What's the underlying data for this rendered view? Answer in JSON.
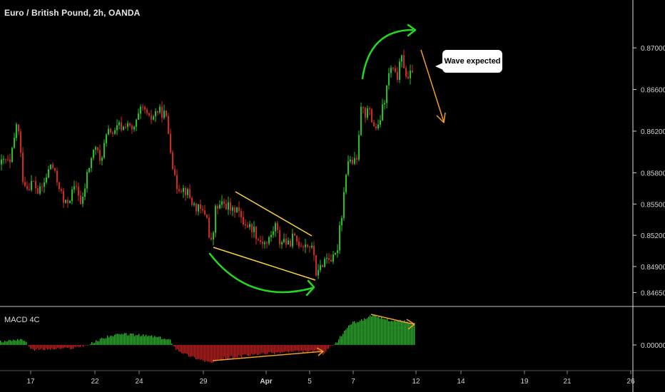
{
  "header": {
    "title": "Euro / British Pound, 2h, OANDA"
  },
  "indicator": {
    "label": "MACD 4C"
  },
  "annotation": {
    "text": "Wave expected"
  },
  "colors": {
    "background": "#000000",
    "up_candle": "#21c321",
    "down_candle": "#d0281e",
    "macd_positive": "#2bb52b",
    "macd_negative": "#c41e1e",
    "trend_line": "#f7d23a",
    "divergence_arrow": "#f39c2a",
    "curve_arrow": "#22d822",
    "forecast_arrow": "#f39c2a",
    "axis_text": "#d0d0d0",
    "separator": "#bfbfbf"
  },
  "chart_data": [
    {
      "type": "candlestick",
      "title": "Euro / British Pound, 2h, OANDA",
      "xlabel": "",
      "ylabel": "",
      "x_ticks": [
        "17",
        "22",
        "24",
        "29",
        "Apr",
        "5",
        "7",
        "12",
        "14",
        "19",
        "21",
        "26"
      ],
      "y_ticks": [
        0.8465,
        0.849,
        0.852,
        0.855,
        0.858,
        0.862,
        0.866,
        0.87
      ],
      "y_tick_labels": [
        "0.84650",
        "0.84900",
        "0.85200",
        "0.85500",
        "0.85800",
        "0.86200",
        "0.86600",
        "0.87000"
      ],
      "ylim": [
        0.8453,
        0.8735
      ],
      "close_path": [
        [
          0,
          0.8588
        ],
        [
          8,
          0.8592
        ],
        [
          14,
          0.8588
        ],
        [
          20,
          0.8612
        ],
        [
          24,
          0.8632
        ],
        [
          28,
          0.8604
        ],
        [
          32,
          0.8575
        ],
        [
          38,
          0.8566
        ],
        [
          46,
          0.8572
        ],
        [
          54,
          0.856
        ],
        [
          62,
          0.857
        ],
        [
          68,
          0.8582
        ],
        [
          72,
          0.859
        ],
        [
          78,
          0.8575
        ],
        [
          84,
          0.8566
        ],
        [
          90,
          0.8548
        ],
        [
          96,
          0.8554
        ],
        [
          102,
          0.8562
        ],
        [
          108,
          0.8568
        ],
        [
          114,
          0.8546
        ],
        [
          118,
          0.8562
        ],
        [
          122,
          0.8578
        ],
        [
          128,
          0.8594
        ],
        [
          134,
          0.8606
        ],
        [
          140,
          0.859
        ],
        [
          148,
          0.8612
        ],
        [
          154,
          0.8622
        ],
        [
          160,
          0.8616
        ],
        [
          166,
          0.8626
        ],
        [
          172,
          0.8622
        ],
        [
          178,
          0.863
        ],
        [
          184,
          0.8618
        ],
        [
          190,
          0.8626
        ],
        [
          196,
          0.8638
        ],
        [
          202,
          0.8642
        ],
        [
          208,
          0.863
        ],
        [
          214,
          0.8634
        ],
        [
          220,
          0.864
        ],
        [
          226,
          0.8638
        ],
        [
          232,
          0.8636
        ],
        [
          238,
          0.861
        ],
        [
          242,
          0.8588
        ],
        [
          246,
          0.8568
        ],
        [
          254,
          0.8566
        ],
        [
          262,
          0.8562
        ],
        [
          270,
          0.855
        ],
        [
          278,
          0.8545
        ],
        [
          284,
          0.8542
        ],
        [
          290,
          0.854
        ],
        [
          294,
          0.851
        ],
        [
          298,
          0.8516
        ],
        [
          302,
          0.8545
        ],
        [
          308,
          0.8548
        ],
        [
          314,
          0.855
        ],
        [
          320,
          0.8548
        ],
        [
          326,
          0.8542
        ],
        [
          332,
          0.855
        ],
        [
          338,
          0.8534
        ],
        [
          344,
          0.8532
        ],
        [
          350,
          0.8528
        ],
        [
          356,
          0.8526
        ],
        [
          362,
          0.8516
        ],
        [
          368,
          0.8514
        ],
        [
          374,
          0.8512
        ],
        [
          380,
          0.852
        ],
        [
          386,
          0.853
        ],
        [
          392,
          0.8514
        ],
        [
          398,
          0.8516
        ],
        [
          404,
          0.851
        ],
        [
          410,
          0.8518
        ],
        [
          416,
          0.8514
        ],
        [
          422,
          0.8512
        ],
        [
          428,
          0.8512
        ],
        [
          434,
          0.851
        ],
        [
          440,
          0.8502
        ],
        [
          444,
          0.8478
        ],
        [
          448,
          0.8488
        ],
        [
          454,
          0.8496
        ],
        [
          460,
          0.85
        ],
        [
          466,
          0.8496
        ],
        [
          472,
          0.8502
        ],
        [
          476,
          0.853
        ],
        [
          480,
          0.8544
        ],
        [
          484,
          0.8578
        ],
        [
          488,
          0.8592
        ],
        [
          494,
          0.859
        ],
        [
          500,
          0.859
        ],
        [
          504,
          0.8628
        ],
        [
          508,
          0.865
        ],
        [
          512,
          0.8636
        ],
        [
          516,
          0.8642
        ],
        [
          522,
          0.8628
        ],
        [
          526,
          0.8624
        ],
        [
          530,
          0.8622
        ],
        [
          534,
          0.8636
        ],
        [
          540,
          0.8652
        ],
        [
          544,
          0.8672
        ],
        [
          548,
          0.868
        ],
        [
          552,
          0.8676
        ],
        [
          556,
          0.867
        ],
        [
          560,
          0.8682
        ],
        [
          564,
          0.8692
        ],
        [
          568,
          0.8676
        ],
        [
          572,
          0.8668
        ],
        [
          576,
          0.8676
        ],
        [
          580,
          0.8684
        ]
      ]
    },
    {
      "type": "bar",
      "title": "MACD 4C",
      "x_ticks": [
        "17",
        "22",
        "24",
        "29",
        "Apr",
        "5",
        "7",
        "12",
        "14",
        "19",
        "21",
        "26"
      ],
      "y_ticks": [
        0
      ],
      "y_tick_labels": [
        "0.00000"
      ],
      "path": [
        [
          0,
          0.4
        ],
        [
          30,
          0.8
        ],
        [
          45,
          -0.6
        ],
        [
          75,
          -0.5
        ],
        [
          100,
          -0.4
        ],
        [
          125,
          0.1
        ],
        [
          150,
          1.1
        ],
        [
          175,
          1.4
        ],
        [
          215,
          1.1
        ],
        [
          238,
          0.6
        ],
        [
          246,
          -0.5
        ],
        [
          262,
          -1.3
        ],
        [
          278,
          -1.8
        ],
        [
          296,
          -2.3
        ],
        [
          312,
          -1.7
        ],
        [
          340,
          -1.4
        ],
        [
          370,
          -1.1
        ],
        [
          400,
          -0.9
        ],
        [
          440,
          -0.8
        ],
        [
          452,
          -1.2
        ],
        [
          462,
          -0.3
        ],
        [
          470,
          0.2
        ],
        [
          480,
          1.5
        ],
        [
          490,
          2.7
        ],
        [
          500,
          3.0
        ],
        [
          510,
          3.3
        ],
        [
          520,
          3.8
        ],
        [
          528,
          3.5
        ],
        [
          540,
          3.3
        ],
        [
          555,
          3.0
        ],
        [
          565,
          3.1
        ],
        [
          572,
          2.8
        ],
        [
          580,
          2.7
        ]
      ]
    }
  ]
}
